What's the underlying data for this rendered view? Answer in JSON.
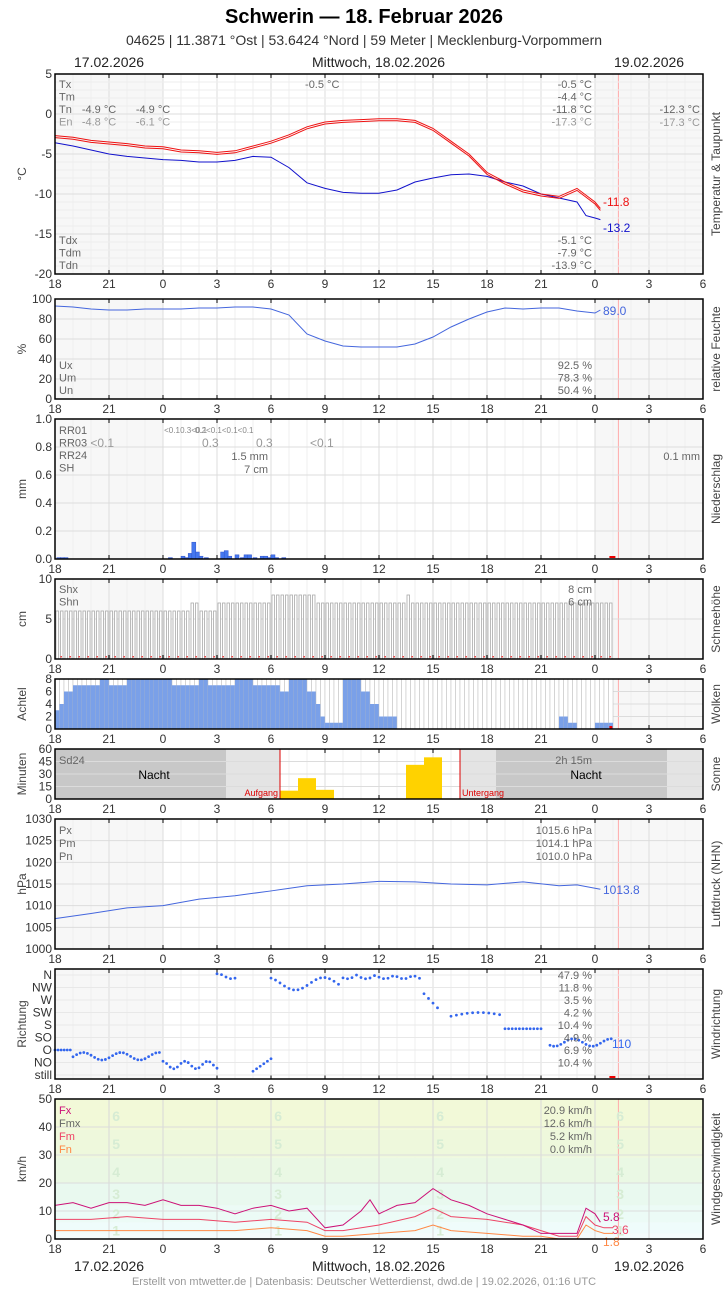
{
  "header": {
    "title": "Schwerin  —  18. Februar 2026",
    "subtitle": "04625  |  11.3871 °Ost  |  53.6424 °Nord  |  59 Meter  |  Mecklenburg-Vorpommern",
    "date_left": "17.02.2026",
    "date_center": "Mittwoch, 18.02.2026",
    "date_right": "19.02.2026"
  },
  "footer": {
    "credit": "Erstellt von mtwetter.de | Datenbasis: Deutscher Wetterdienst, dwd.de | 19.02.2026, 01:16 UTC"
  },
  "colors": {
    "temp": "#ee1111",
    "dewpoint": "#1111cc",
    "humidity": "#4466dd",
    "precip": "#4477ee",
    "cloud": "#7aa0e8",
    "sun": "#ffd200",
    "pressure": "#4466dd",
    "winddir": "#3366ee",
    "fx": "#cc1177",
    "fm": "#ee4466",
    "fn": "#ff8844",
    "now_line": "#ffaaaa"
  },
  "x_axis": {
    "ticks": [
      "18",
      "21",
      "0",
      "3",
      "6",
      "9",
      "12",
      "15",
      "18",
      "21",
      "0",
      "3",
      "6"
    ]
  },
  "chart_data": [
    {
      "type": "line",
      "title": "Temperatur & Taupunkt",
      "ylabel": "°C",
      "ylim": [
        -20,
        5
      ],
      "yticks": [
        "5",
        "0",
        "-5",
        "-10",
        "-15",
        "-20"
      ],
      "legend_top": [
        "Tx",
        "Tm",
        "Tn",
        "En"
      ],
      "legend_bottom": [
        "Tdx",
        "Tdm",
        "Tdn"
      ],
      "annotations": [
        {
          "text": "-4.9 °C",
          "x": 3.4,
          "row": 2
        },
        {
          "text": "-4.8 °C",
          "x": 3.4,
          "row": 3
        },
        {
          "text": "-4.9 °C",
          "x": 6.4,
          "row": 2
        },
        {
          "text": "-6.1 °C",
          "x": 6.4,
          "row": 3
        },
        {
          "text": "-0.5 °C",
          "x": 15.8,
          "row": 0
        }
      ],
      "stats": {
        "Tx": "-0.5 °C",
        "Tm": "-4.4 °C",
        "Tn": "-11.8 °C",
        "En": "-17.3 °C",
        "Tdx": "-5.1 °C",
        "Tdm": "-7.9 °C",
        "Tdn": "-13.9 °C"
      },
      "next_day": {
        "Tn": "-12.3 °C",
        "En": "-17.3 °C"
      },
      "last_values": {
        "temp": "-11.8",
        "dewpoint": "-13.2"
      },
      "series": [
        {
          "name": "Temperatur",
          "x": [
            0,
            1,
            2,
            3,
            4,
            5,
            6,
            7,
            8,
            9,
            10,
            11,
            12,
            13,
            14,
            14.5,
            15,
            16,
            17,
            18,
            19,
            20,
            21,
            22,
            23,
            24,
            25,
            26,
            27,
            28,
            29,
            30,
            30.3
          ],
          "values": [
            -2.7,
            -2.9,
            -3.3,
            -3.5,
            -3.7,
            -4.0,
            -4.1,
            -4.5,
            -4.6,
            -4.8,
            -4.6,
            -4.0,
            -3.4,
            -2.6,
            -1.6,
            -1.3,
            -1.0,
            -0.8,
            -0.7,
            -0.6,
            -0.6,
            -0.8,
            -1.8,
            -3.4,
            -5.0,
            -7.3,
            -8.5,
            -9.5,
            -10.0,
            -10.3,
            -9.3,
            -11.0,
            -11.8
          ]
        },
        {
          "name": "Taupunkt",
          "x": [
            0,
            1,
            2,
            3,
            4,
            5,
            6,
            7,
            8,
            9,
            10,
            11,
            12,
            13,
            14,
            15,
            16,
            17,
            18,
            19,
            20,
            21,
            22,
            23,
            24,
            25,
            26,
            27,
            28,
            29,
            29.5,
            30,
            30.3
          ],
          "values": [
            -3.6,
            -4.0,
            -4.5,
            -5.0,
            -5.3,
            -5.5,
            -5.7,
            -5.8,
            -6.0,
            -6.0,
            -5.8,
            -5.3,
            -5.4,
            -6.7,
            -8.6,
            -9.3,
            -9.8,
            -9.9,
            -9.9,
            -9.5,
            -8.5,
            -8.0,
            -7.6,
            -7.5,
            -7.8,
            -8.5,
            -9.0,
            -10.0,
            -10.5,
            -11.0,
            -12.7,
            -13.0,
            -13.2
          ]
        }
      ]
    },
    {
      "type": "line",
      "title": "relative Feuchte",
      "ylabel": "%",
      "ylim": [
        0,
        100
      ],
      "yticks": [
        "100",
        "80",
        "60",
        "40",
        "20",
        "0"
      ],
      "legend": [
        "Ux",
        "Um",
        "Un"
      ],
      "stats": {
        "Ux": "92.5 %",
        "Um": "78.3 %",
        "Un": "50.4 %"
      },
      "last_value": "89.0",
      "x": [
        0,
        1,
        2,
        3,
        4,
        5,
        6,
        7,
        8,
        9,
        10,
        11,
        12,
        13,
        14,
        15,
        16,
        17,
        18,
        19,
        20,
        21,
        22,
        23,
        24,
        25,
        26,
        27,
        28,
        29,
        30,
        30.3
      ],
      "values": [
        93,
        92,
        90,
        89,
        89,
        90,
        90,
        90,
        91,
        91,
        92,
        92,
        90,
        84,
        65,
        58,
        53,
        52,
        52,
        52,
        55,
        62,
        72,
        80,
        87,
        91,
        90,
        91,
        91,
        88,
        86,
        89
      ]
    },
    {
      "type": "bar",
      "title": "Niederschlag",
      "ylabel": "mm",
      "ylim": [
        0,
        1.0
      ],
      "yticks": [
        "1.0",
        "0.8",
        "0.6",
        "0.4",
        "0.2",
        "0.0"
      ],
      "legend": [
        "RR01",
        "RR03",
        "RR24",
        "SH"
      ],
      "rr01_labels": [
        {
          "x": 6.5,
          "text": "<0.1"
        },
        {
          "x": 7.7,
          "text": "0.3<0.1"
        },
        {
          "x": 9.4,
          "text": "0.2<0.1<0.1<0.1"
        }
      ],
      "rr03_labels": [
        {
          "x": 2.3,
          "text": "<0.1"
        },
        {
          "x": 8.5,
          "text": "0.3"
        },
        {
          "x": 11.5,
          "text": "0.3"
        },
        {
          "x": 14.5,
          "text": "<0.1"
        }
      ],
      "rr24": "1.5 mm",
      "sh": "7 cm",
      "next_day_rr24": "0.1 mm",
      "bars_x": [
        0.1,
        0.3,
        0.5,
        6.3,
        7.0,
        7.2,
        7.4,
        7.6,
        7.8,
        8.0,
        8.3,
        9.2,
        9.4,
        9.6,
        10.0,
        10.3,
        10.5,
        10.7,
        11.0,
        11.4,
        11.6,
        11.8,
        12.0,
        12.2,
        12.6
      ],
      "bars_v": [
        0.01,
        0.01,
        0.01,
        0.01,
        0.02,
        0.01,
        0.04,
        0.12,
        0.05,
        0.02,
        0.01,
        0.05,
        0.06,
        0.02,
        0.03,
        0.01,
        0.03,
        0.03,
        0.01,
        0.02,
        0.02,
        0.01,
        0.03,
        0.01,
        0.01
      ]
    },
    {
      "type": "bar",
      "title": "Schneehöhe",
      "ylabel": "cm",
      "ylim": [
        0,
        10
      ],
      "yticks": [
        "10",
        "5",
        "0"
      ],
      "legend": [
        "Shx",
        "Shn"
      ],
      "stats": {
        "Shx": "8 cm",
        "Shn": "6 cm"
      },
      "segments": [
        {
          "from": 0,
          "to": 7.5,
          "v": 6
        },
        {
          "from": 7.5,
          "to": 8,
          "v": 7
        },
        {
          "from": 8,
          "to": 9,
          "v": 6
        },
        {
          "from": 9,
          "to": 12,
          "v": 7
        },
        {
          "from": 12,
          "to": 14.5,
          "v": 8
        },
        {
          "from": 14.5,
          "to": 19.5,
          "v": 7
        },
        {
          "from": 19.5,
          "to": 19.75,
          "v": 8
        },
        {
          "from": 19.75,
          "to": 31,
          "v": 7
        }
      ]
    },
    {
      "type": "bar",
      "title": "Wolken",
      "ylabel": "Achtel",
      "ylim": [
        0,
        8
      ],
      "yticks": [
        "8",
        "6",
        "4",
        "2",
        "0"
      ],
      "x": [
        0,
        0.25,
        0.5,
        1,
        2,
        2.5,
        3,
        4,
        5,
        6,
        6.5,
        7,
        8,
        8.5,
        9,
        10,
        11,
        12,
        12.5,
        13,
        13.5,
        14,
        14.5,
        14.7,
        15,
        16,
        16.5,
        17,
        17.5,
        18,
        19,
        20,
        21,
        22,
        24,
        27,
        28,
        28.5,
        29,
        30,
        31
      ],
      "values": [
        3,
        4,
        6,
        7,
        7,
        8,
        7,
        8,
        8,
        8,
        7,
        7,
        8,
        7,
        7,
        8,
        7,
        7,
        6,
        8,
        8,
        6,
        4,
        2,
        1,
        8,
        8,
        6,
        4,
        2,
        0,
        0,
        0,
        0,
        0,
        0,
        2,
        1,
        0,
        1,
        6
      ]
    },
    {
      "type": "bar",
      "title": "Sonne",
      "ylabel": "Minuten",
      "ylim": [
        0,
        60
      ],
      "yticks": [
        "60",
        "45",
        "30",
        "15",
        "0"
      ],
      "legend": [
        "Sd24"
      ],
      "sd24": "2h 15m",
      "night_label": "Nacht",
      "sunrise_label": "Aufgang",
      "sunset_label": "Untergang",
      "sunrise_x": 12.5,
      "sunset_x": 22.5,
      "bars": [
        {
          "x": 13,
          "v": 10
        },
        {
          "x": 14,
          "v": 25
        },
        {
          "x": 15,
          "v": 11
        },
        {
          "x": 20,
          "v": 41
        },
        {
          "x": 21,
          "v": 50
        }
      ]
    },
    {
      "type": "line",
      "title": "Luftdruck (NHN)",
      "ylabel": "hPa",
      "ylim": [
        1000,
        1030
      ],
      "yticks": [
        "1030",
        "1025",
        "1020",
        "1015",
        "1010",
        "1005",
        "1000"
      ],
      "legend": [
        "Px",
        "Pm",
        "Pn"
      ],
      "stats": {
        "Px": "1015.6 hPa",
        "Pm": "1014.1 hPa",
        "Pn": "1010.0 hPa"
      },
      "last_value": "1013.8",
      "x": [
        0,
        2,
        4,
        6,
        8,
        10,
        12,
        14,
        16,
        18,
        20,
        22,
        24,
        26,
        28,
        29,
        30.3
      ],
      "values": [
        1007.0,
        1008.2,
        1009.5,
        1010.0,
        1011.5,
        1012.3,
        1013.4,
        1014.6,
        1015.0,
        1015.6,
        1015.5,
        1015.0,
        1014.8,
        1015.5,
        1014.6,
        1014.8,
        1013.8
      ]
    },
    {
      "type": "scatter",
      "title": "Windrichtung",
      "ylabel": "Richtung",
      "yticks": [
        "N",
        "NW",
        "W",
        "SW",
        "S",
        "SO",
        "O",
        "NO",
        "still"
      ],
      "stats": [
        "47.9 %",
        "11.8 %",
        "3.5 %",
        "4.2 %",
        "10.4 %",
        "4.9 %",
        "6.9 %",
        "10.4 %"
      ],
      "last_value": "110"
    },
    {
      "type": "line",
      "title": "Windgeschwindigkeit",
      "ylabel": "km/h",
      "ylim": [
        0,
        50
      ],
      "yticks": [
        "50",
        "40",
        "30",
        "20",
        "10",
        "0"
      ],
      "legend": [
        "Fx",
        "Fmx",
        "Fm",
        "Fn"
      ],
      "stats": {
        "Fx": "20.9 km/h",
        "Fmx": "12.6 km/h",
        "Fm": "5.2 km/h",
        "Fn": "0.0 km/h"
      },
      "beaufort_labels": [
        "6",
        "5",
        "4",
        "3",
        "2",
        "1"
      ],
      "last_values": {
        "Fx": "5.8",
        "Fm": "3.6",
        "Fn": "1.8"
      },
      "series": [
        {
          "name": "Fx",
          "x": [
            0,
            1,
            2,
            3,
            4,
            5,
            6,
            7,
            8,
            9,
            10,
            11,
            12,
            13,
            14,
            15,
            16,
            17,
            17.5,
            18,
            19,
            20,
            21,
            22,
            23,
            24,
            25,
            26,
            27,
            28,
            29,
            29.5,
            30,
            30.3
          ],
          "values": [
            12,
            13,
            11,
            13,
            13,
            12,
            14,
            12,
            12,
            11,
            9,
            11,
            12,
            10,
            11,
            4,
            5,
            10,
            14,
            9,
            12,
            13,
            18,
            14,
            12,
            9,
            7,
            5,
            2,
            2,
            2,
            11,
            9,
            6
          ]
        },
        {
          "name": "Fm",
          "x": [
            0,
            2,
            4,
            6,
            8,
            10,
            12,
            14,
            15,
            16,
            18,
            20,
            21,
            22,
            24,
            26,
            27,
            28,
            29,
            29.5,
            30,
            30.5,
            31
          ],
          "values": [
            7,
            7,
            8,
            7,
            7,
            6,
            7,
            6,
            3,
            3,
            5,
            8,
            11,
            8,
            7,
            5,
            3,
            1,
            1,
            8,
            5,
            4,
            4
          ]
        },
        {
          "name": "Fn",
          "x": [
            0,
            2,
            4,
            6,
            8,
            10,
            12,
            14,
            15,
            16,
            18,
            20,
            21,
            22,
            24,
            26,
            27,
            28,
            29,
            29.5,
            30,
            30.5,
            31
          ],
          "values": [
            3,
            3,
            3,
            3,
            3,
            3,
            4,
            3,
            1,
            1,
            2,
            3,
            5,
            3,
            2,
            1,
            1,
            0,
            0,
            5,
            3,
            2,
            2
          ]
        }
      ]
    }
  ],
  "side_labels": [
    "Temperatur & Taupunkt",
    "relative Feuchte",
    "Niederschlag",
    "Schneehöhe",
    "Wolken",
    "Sonne",
    "Luftdruck (NHN)",
    "Windrichtung",
    "Windgeschwindigkeit"
  ],
  "unit_labels": [
    "°C",
    "%",
    "mm",
    "cm",
    "Achtel",
    "Minuten",
    "hPa",
    "Richtung",
    "km/h"
  ]
}
